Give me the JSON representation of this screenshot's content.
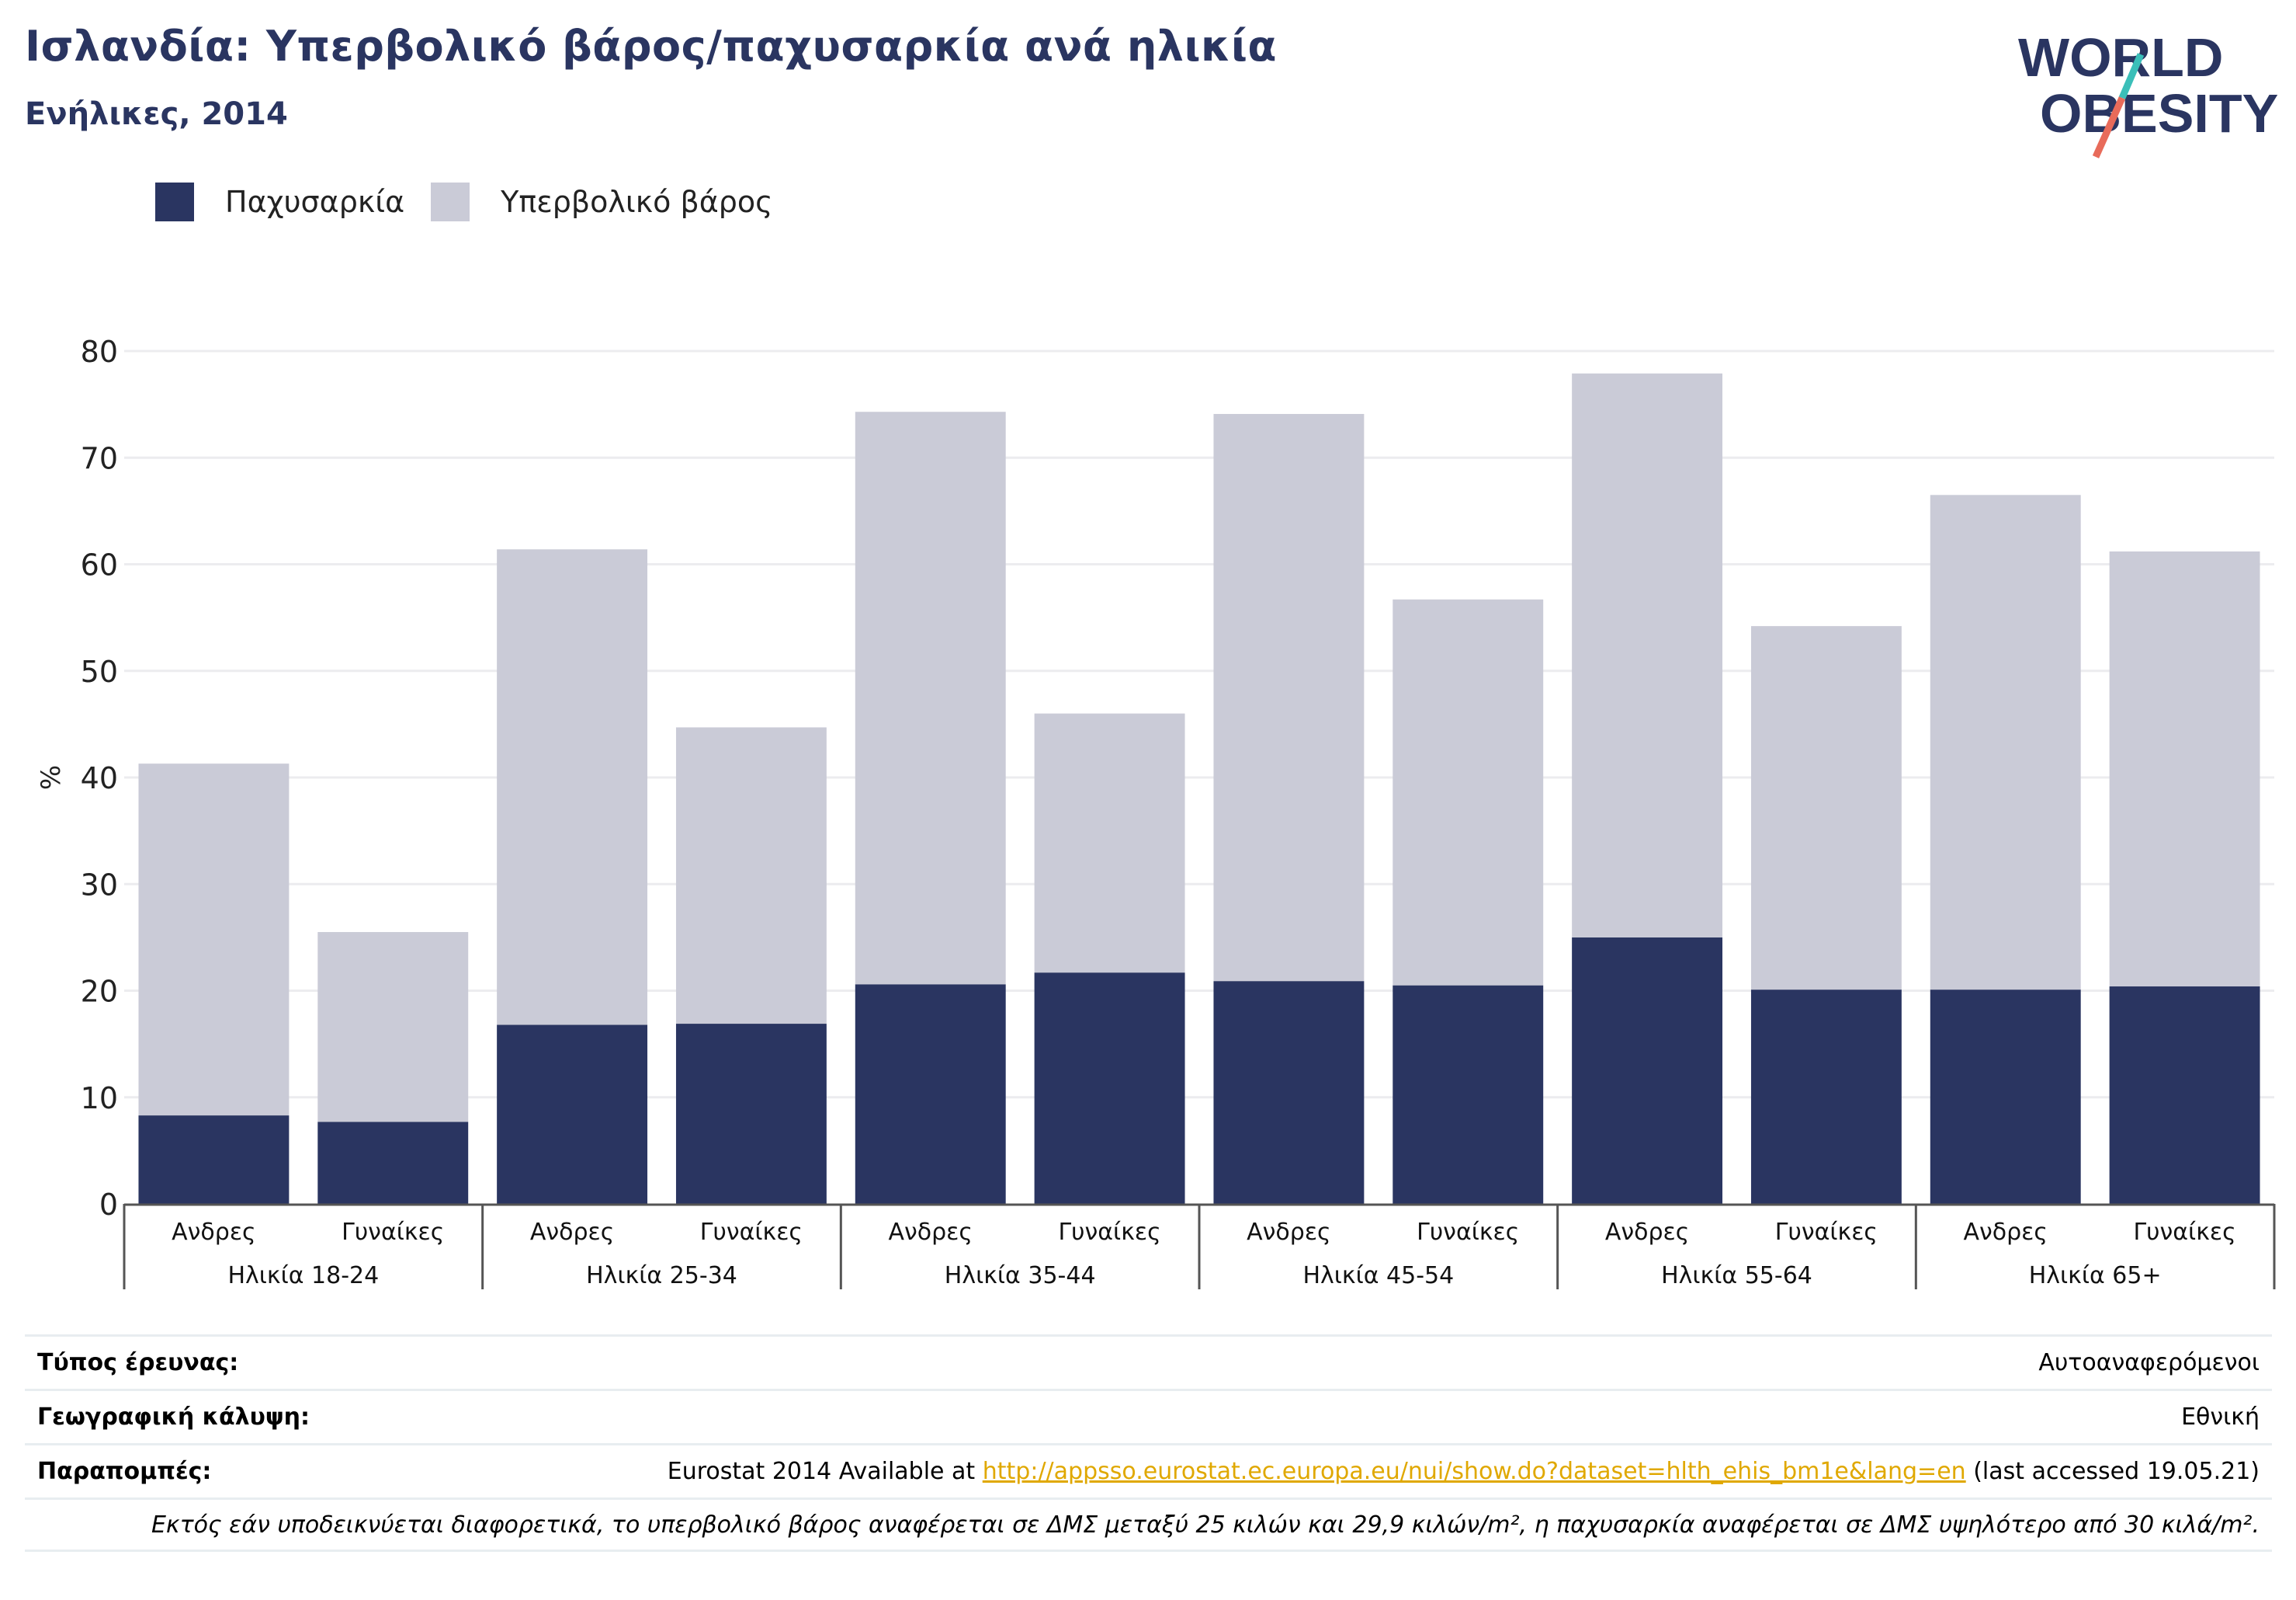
{
  "header": {
    "title": "Ισλανδία: Υπερβολικό βάρος/παχυσαρκία ανά ηλικία",
    "subtitle": "Ενήλικες, 2014"
  },
  "logo": {
    "line1": "WORLD",
    "line2": "OBESITY"
  },
  "legend": [
    {
      "label": "Παχυσαρκία",
      "color": "#2a3561"
    },
    {
      "label": "Υπερβολικό βάρος",
      "color": "#cacbd7"
    }
  ],
  "chart_data": {
    "type": "bar",
    "stacked": true,
    "ylabel": "%",
    "ylim": [
      0,
      80
    ],
    "yticks": [
      0,
      10,
      20,
      30,
      40,
      50,
      60,
      70,
      80
    ],
    "grid": true,
    "legend_position": "top-left",
    "groups": [
      "Ηλικία 18-24",
      "Ηλικία 25-34",
      "Ηλικία 35-44",
      "Ηλικία 45-54",
      "Ηλικία 55-64",
      "Ηλικία 65+"
    ],
    "sexes": [
      "Ανδρες",
      "Γυναίκες"
    ],
    "categories": [
      "Ανδρες",
      "Γυναίκες",
      "Ανδρες",
      "Γυναίκες",
      "Ανδρες",
      "Γυναίκες",
      "Ανδρες",
      "Γυναίκες",
      "Ανδρες",
      "Γυναίκες",
      "Ανδρες",
      "Γυναίκες"
    ],
    "series": [
      {
        "name": "Παχυσαρκία",
        "color": "#2a3561",
        "values": [
          8.3,
          7.7,
          16.8,
          16.9,
          20.6,
          21.7,
          20.9,
          20.5,
          25.0,
          20.1,
          20.1,
          20.4
        ]
      },
      {
        "name": "Υπερβολικό βάρος",
        "color": "#cacbd7",
        "values": [
          33.0,
          17.8,
          44.6,
          27.8,
          53.7,
          24.3,
          53.2,
          36.2,
          52.9,
          34.1,
          46.4,
          40.8
        ]
      }
    ]
  },
  "footer": {
    "survey_type_label": "Τύπος έρευνας:",
    "survey_type_value": "Αυτοαναφερόμενοι",
    "coverage_label": "Γεωγραφική κάλυψη:",
    "coverage_value": "Εθνική",
    "references_label": "Παραπομπές:",
    "references_prefix": "Eurostat 2014 Available at",
    "references_link": "http://appsso.eurostat.ec.europa.eu/nui/show.do?dataset=hlth_ehis_bm1e&lang=en",
    "references_suffix": "(last accessed 19.05.21)",
    "note": "Εκτός εάν υποδεικνύεται διαφορετικά, το υπερβολικό βάρος αναφέρεται σε ΔΜΣ μεταξύ 25 κιλών και 29,9 κιλών/m², η παχυσαρκία αναφέρεται σε ΔΜΣ υψηλότερο από 30 κιλά/m²."
  }
}
